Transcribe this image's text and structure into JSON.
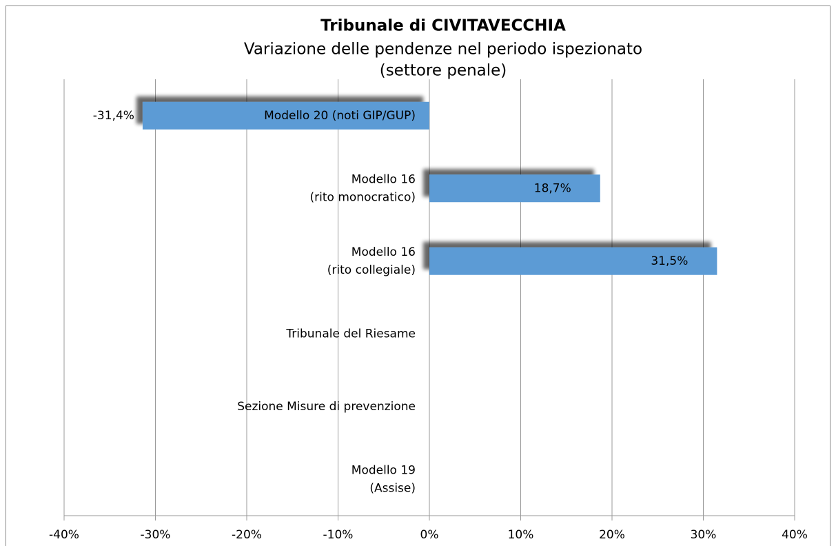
{
  "chart_data": {
    "type": "barh",
    "title": "Tribunale di CIVITAVECCHIA",
    "subtitle": [
      "Variazione delle pendenze nel periodo ispezionato",
      "(settore penale)"
    ],
    "categories": [
      [
        "Modello 20 (noti GIP/GUP)"
      ],
      [
        "Modello 16",
        "(rito monocratico)"
      ],
      [
        "Modello 16",
        "(rito collegiale)"
      ],
      [
        "Tribunale del Riesame"
      ],
      [
        "Sezione Misure di prevenzione"
      ],
      [
        "Modello 19",
        "(Assise)"
      ]
    ],
    "values": [
      -31.4,
      18.7,
      31.5,
      null,
      null,
      null
    ],
    "value_labels": [
      "-31,4%",
      "18,7%",
      "31,5%",
      null,
      null,
      null
    ],
    "color": "#5b9bd5",
    "xlim": [
      -40,
      40
    ],
    "xticks": [
      {
        "value": -40,
        "label": "-40%"
      },
      {
        "value": -30,
        "label": "-30%"
      },
      {
        "value": -20,
        "label": "-20%"
      },
      {
        "value": -10,
        "label": "-10%"
      },
      {
        "value": 0,
        "label": "0%"
      },
      {
        "value": 10,
        "label": "10%"
      },
      {
        "value": 20,
        "label": "20%"
      },
      {
        "value": 30,
        "label": "30%"
      },
      {
        "value": 40,
        "label": "40%"
      }
    ],
    "grid": true
  }
}
